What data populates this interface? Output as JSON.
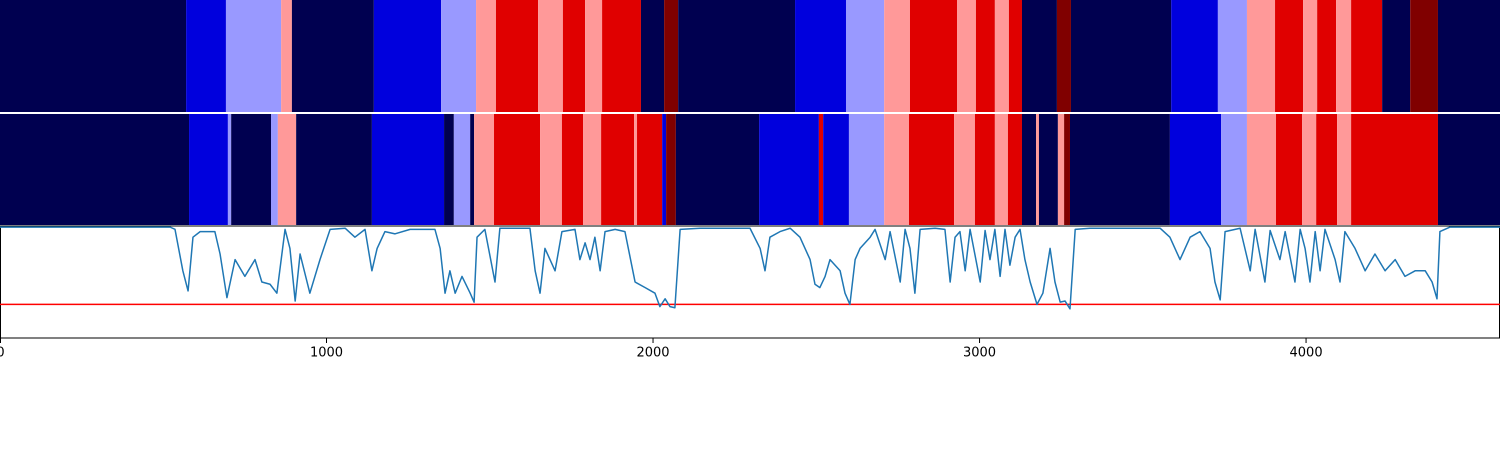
{
  "chart_data": {
    "type": "segments",
    "xlim": [
      0,
      4594
    ],
    "xticks": [
      0,
      1000,
      2000,
      3000,
      4000
    ],
    "bands": [
      {
        "segments": [
          {
            "start": 0,
            "end": 570,
            "color": "#000050"
          },
          {
            "start": 570,
            "end": 692,
            "color": "#0000dd"
          },
          {
            "start": 692,
            "end": 861,
            "color": "#9999ff"
          },
          {
            "start": 861,
            "end": 894,
            "color": "#ff9999"
          },
          {
            "start": 894,
            "end": 1145,
            "color": "#000050"
          },
          {
            "start": 1145,
            "end": 1351,
            "color": "#0000dd"
          },
          {
            "start": 1351,
            "end": 1458,
            "color": "#9999ff"
          },
          {
            "start": 1458,
            "end": 1519,
            "color": "#ff9999"
          },
          {
            "start": 1519,
            "end": 1648,
            "color": "#e00000"
          },
          {
            "start": 1648,
            "end": 1724,
            "color": "#ff9999"
          },
          {
            "start": 1724,
            "end": 1792,
            "color": "#e00000"
          },
          {
            "start": 1792,
            "end": 1844,
            "color": "#ff9999"
          },
          {
            "start": 1844,
            "end": 1963,
            "color": "#e00000"
          },
          {
            "start": 1963,
            "end": 2034,
            "color": "#000050"
          },
          {
            "start": 2034,
            "end": 2077,
            "color": "#800000"
          },
          {
            "start": 2077,
            "end": 2435,
            "color": "#000050"
          },
          {
            "start": 2435,
            "end": 2591,
            "color": "#0000dd"
          },
          {
            "start": 2591,
            "end": 2708,
            "color": "#9999ff"
          },
          {
            "start": 2708,
            "end": 2787,
            "color": "#ff9999"
          },
          {
            "start": 2787,
            "end": 2931,
            "color": "#e00000"
          },
          {
            "start": 2931,
            "end": 2989,
            "color": "#ff9999"
          },
          {
            "start": 2989,
            "end": 3047,
            "color": "#e00000"
          },
          {
            "start": 3047,
            "end": 3090,
            "color": "#ff9999"
          },
          {
            "start": 3090,
            "end": 3130,
            "color": "#e00000"
          },
          {
            "start": 3130,
            "end": 3237,
            "color": "#000050"
          },
          {
            "start": 3237,
            "end": 3280,
            "color": "#800000"
          },
          {
            "start": 3280,
            "end": 3587,
            "color": "#000050"
          },
          {
            "start": 3587,
            "end": 3730,
            "color": "#0000dd"
          },
          {
            "start": 3730,
            "end": 3819,
            "color": "#9999ff"
          },
          {
            "start": 3819,
            "end": 3905,
            "color": "#ff9999"
          },
          {
            "start": 3905,
            "end": 3991,
            "color": "#e00000"
          },
          {
            "start": 3991,
            "end": 4034,
            "color": "#ff9999"
          },
          {
            "start": 4034,
            "end": 4092,
            "color": "#e00000"
          },
          {
            "start": 4092,
            "end": 4138,
            "color": "#ff9999"
          },
          {
            "start": 4138,
            "end": 4233,
            "color": "#e00000"
          },
          {
            "start": 4233,
            "end": 4319,
            "color": "#000050"
          },
          {
            "start": 4319,
            "end": 4404,
            "color": "#800000"
          },
          {
            "start": 4404,
            "end": 4594,
            "color": "#000050"
          }
        ]
      },
      {
        "segments": [
          {
            "start": 0,
            "end": 579,
            "color": "#000050"
          },
          {
            "start": 579,
            "end": 698,
            "color": "#0000dd"
          },
          {
            "start": 698,
            "end": 708,
            "color": "#9999ff"
          },
          {
            "start": 708,
            "end": 830,
            "color": "#000050"
          },
          {
            "start": 830,
            "end": 851,
            "color": "#9999ff"
          },
          {
            "start": 851,
            "end": 907,
            "color": "#ff9999"
          },
          {
            "start": 907,
            "end": 1139,
            "color": "#000050"
          },
          {
            "start": 1139,
            "end": 1360,
            "color": "#0000dd"
          },
          {
            "start": 1360,
            "end": 1390,
            "color": "#000050"
          },
          {
            "start": 1390,
            "end": 1440,
            "color": "#9999ff"
          },
          {
            "start": 1440,
            "end": 1452,
            "color": "#000050"
          },
          {
            "start": 1452,
            "end": 1513,
            "color": "#ff9999"
          },
          {
            "start": 1513,
            "end": 1654,
            "color": "#e00000"
          },
          {
            "start": 1654,
            "end": 1721,
            "color": "#ff9999"
          },
          {
            "start": 1721,
            "end": 1786,
            "color": "#e00000"
          },
          {
            "start": 1786,
            "end": 1841,
            "color": "#ff9999"
          },
          {
            "start": 1841,
            "end": 1942,
            "color": "#e00000"
          },
          {
            "start": 1942,
            "end": 1951,
            "color": "#ff9999"
          },
          {
            "start": 1951,
            "end": 2028,
            "color": "#e00000"
          },
          {
            "start": 2028,
            "end": 2040,
            "color": "#0000dd"
          },
          {
            "start": 2040,
            "end": 2070,
            "color": "#800000"
          },
          {
            "start": 2070,
            "end": 2325,
            "color": "#000050"
          },
          {
            "start": 2325,
            "end": 2508,
            "color": "#0000dd"
          },
          {
            "start": 2508,
            "end": 2521,
            "color": "#e00000"
          },
          {
            "start": 2521,
            "end": 2600,
            "color": "#0000dd"
          },
          {
            "start": 2600,
            "end": 2708,
            "color": "#9999ff"
          },
          {
            "start": 2708,
            "end": 2784,
            "color": "#ff9999"
          },
          {
            "start": 2784,
            "end": 2922,
            "color": "#e00000"
          },
          {
            "start": 2922,
            "end": 2986,
            "color": "#ff9999"
          },
          {
            "start": 2986,
            "end": 3047,
            "color": "#e00000"
          },
          {
            "start": 3047,
            "end": 3087,
            "color": "#ff9999"
          },
          {
            "start": 3087,
            "end": 3130,
            "color": "#e00000"
          },
          {
            "start": 3130,
            "end": 3173,
            "color": "#000050"
          },
          {
            "start": 3173,
            "end": 3182,
            "color": "#ff9999"
          },
          {
            "start": 3182,
            "end": 3240,
            "color": "#000050"
          },
          {
            "start": 3240,
            "end": 3259,
            "color": "#ff9999"
          },
          {
            "start": 3259,
            "end": 3277,
            "color": "#800000"
          },
          {
            "start": 3277,
            "end": 3583,
            "color": "#000050"
          },
          {
            "start": 3583,
            "end": 3740,
            "color": "#0000dd"
          },
          {
            "start": 3740,
            "end": 3819,
            "color": "#9999ff"
          },
          {
            "start": 3819,
            "end": 3908,
            "color": "#ff9999"
          },
          {
            "start": 3908,
            "end": 3988,
            "color": "#e00000"
          },
          {
            "start": 3988,
            "end": 4031,
            "color": "#ff9999"
          },
          {
            "start": 4031,
            "end": 4095,
            "color": "#e00000"
          },
          {
            "start": 4095,
            "end": 4138,
            "color": "#ff9999"
          },
          {
            "start": 4138,
            "end": 4404,
            "color": "#e00000"
          },
          {
            "start": 4404,
            "end": 4594,
            "color": "#000050"
          }
        ]
      }
    ],
    "ylim": [
      0,
      1
    ],
    "confidence": {
      "color": "#1f77b4",
      "x": [
        0,
        521,
        536,
        560,
        576,
        591,
        613,
        658,
        674,
        695,
        720,
        750,
        781,
        802,
        827,
        848,
        873,
        888,
        904,
        919,
        949,
        980,
        1011,
        1057,
        1087,
        1118,
        1139,
        1155,
        1179,
        1210,
        1256,
        1332,
        1348,
        1363,
        1378,
        1394,
        1415,
        1440,
        1452,
        1461,
        1485,
        1516,
        1531,
        1623,
        1639,
        1654,
        1669,
        1700,
        1721,
        1761,
        1776,
        1792,
        1807,
        1822,
        1838,
        1853,
        1884,
        1914,
        1945,
        1976,
        2006,
        2021,
        2037,
        2052,
        2067,
        2083,
        2144,
        2297,
        2328,
        2343,
        2358,
        2389,
        2420,
        2450,
        2481,
        2496,
        2511,
        2527,
        2542,
        2573,
        2588,
        2603,
        2619,
        2634,
        2665,
        2680,
        2711,
        2726,
        2757,
        2772,
        2787,
        2802,
        2818,
        2864,
        2894,
        2910,
        2925,
        2940,
        2956,
        2971,
        3002,
        3017,
        3032,
        3047,
        3063,
        3078,
        3093,
        3109,
        3124,
        3139,
        3155,
        3176,
        3194,
        3216,
        3231,
        3247,
        3262,
        3277,
        3293,
        3338,
        3553,
        3583,
        3614,
        3645,
        3675,
        3706,
        3721,
        3737,
        3752,
        3798,
        3829,
        3844,
        3874,
        3890,
        3920,
        3936,
        3966,
        3982,
        3997,
        4012,
        4028,
        4043,
        4058,
        4089,
        4104,
        4119,
        4150,
        4181,
        4211,
        4242,
        4273,
        4303,
        4334,
        4365,
        4386,
        4401,
        4410,
        4441,
        4594
      ],
      "values": [
        0.99,
        0.99,
        0.97,
        0.6,
        0.42,
        0.9,
        0.95,
        0.95,
        0.75,
        0.36,
        0.7,
        0.55,
        0.7,
        0.5,
        0.48,
        0.4,
        0.97,
        0.8,
        0.33,
        0.75,
        0.4,
        0.7,
        0.97,
        0.98,
        0.9,
        0.97,
        0.6,
        0.8,
        0.95,
        0.93,
        0.97,
        0.97,
        0.8,
        0.4,
        0.6,
        0.4,
        0.55,
        0.4,
        0.32,
        0.9,
        0.97,
        0.5,
        0.98,
        0.98,
        0.6,
        0.4,
        0.8,
        0.6,
        0.95,
        0.97,
        0.7,
        0.85,
        0.7,
        0.9,
        0.6,
        0.95,
        0.97,
        0.95,
        0.5,
        0.45,
        0.4,
        0.28,
        0.35,
        0.28,
        0.27,
        0.97,
        0.98,
        0.98,
        0.8,
        0.6,
        0.9,
        0.95,
        0.98,
        0.9,
        0.7,
        0.48,
        0.45,
        0.55,
        0.7,
        0.6,
        0.4,
        0.3,
        0.7,
        0.8,
        0.9,
        0.97,
        0.7,
        0.95,
        0.5,
        0.97,
        0.8,
        0.4,
        0.97,
        0.98,
        0.97,
        0.5,
        0.9,
        0.95,
        0.6,
        0.97,
        0.5,
        0.96,
        0.7,
        0.97,
        0.55,
        0.97,
        0.65,
        0.9,
        0.97,
        0.7,
        0.5,
        0.3,
        0.4,
        0.8,
        0.5,
        0.32,
        0.33,
        0.26,
        0.97,
        0.98,
        0.98,
        0.9,
        0.7,
        0.9,
        0.95,
        0.8,
        0.5,
        0.34,
        0.95,
        0.98,
        0.6,
        0.97,
        0.5,
        0.96,
        0.7,
        0.95,
        0.5,
        0.97,
        0.8,
        0.5,
        0.95,
        0.6,
        0.97,
        0.7,
        0.5,
        0.95,
        0.8,
        0.6,
        0.75,
        0.6,
        0.7,
        0.55,
        0.6,
        0.6,
        0.5,
        0.35,
        0.95,
        0.99,
        0.99
      ]
    },
    "threshold": {
      "value": 0.3,
      "color": "#ff0000"
    }
  }
}
